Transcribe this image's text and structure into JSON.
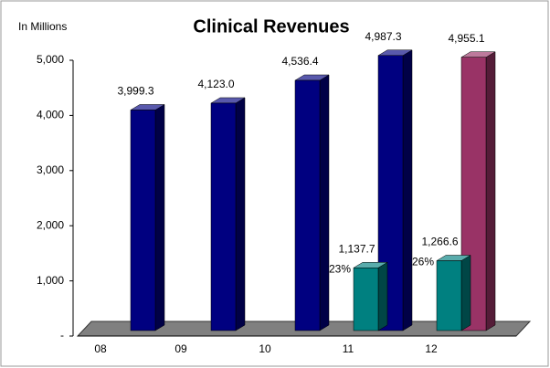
{
  "chart_data": {
    "type": "bar3d",
    "title": "Clinical Revenues",
    "y_axis_label": "In Millions",
    "categories": [
      "08",
      "09",
      "10",
      "11",
      "12"
    ],
    "series": [
      {
        "color": "#000080",
        "values": [
          3999.3,
          4123.0,
          4536.4,
          4987.3,
          null
        ],
        "value_labels": [
          "3,999.3",
          "4,123.0",
          "4,536.4",
          "4,987.3",
          null
        ]
      },
      {
        "color": "#993366",
        "values": [
          null,
          null,
          null,
          null,
          4955.1
        ],
        "value_labels": [
          null,
          null,
          null,
          null,
          "4,955.1"
        ]
      },
      {
        "color": "#008080",
        "values": [
          null,
          null,
          null,
          1137.7,
          1266.6
        ],
        "value_labels": [
          null,
          null,
          null,
          "1,137.7",
          "1,266.6"
        ],
        "percent_labels": [
          null,
          null,
          null,
          "23%",
          "26%"
        ]
      }
    ],
    "ylim": [
      0,
      5000
    ],
    "yticks": [
      {
        "value": 0,
        "label": "-"
      },
      {
        "value": 1000,
        "label": "1,000"
      },
      {
        "value": 2000,
        "label": "2,000"
      },
      {
        "value": 3000,
        "label": "3,000"
      },
      {
        "value": 4000,
        "label": "4,000"
      },
      {
        "value": 5000,
        "label": "5,000"
      }
    ],
    "floor_color": "#808080"
  }
}
